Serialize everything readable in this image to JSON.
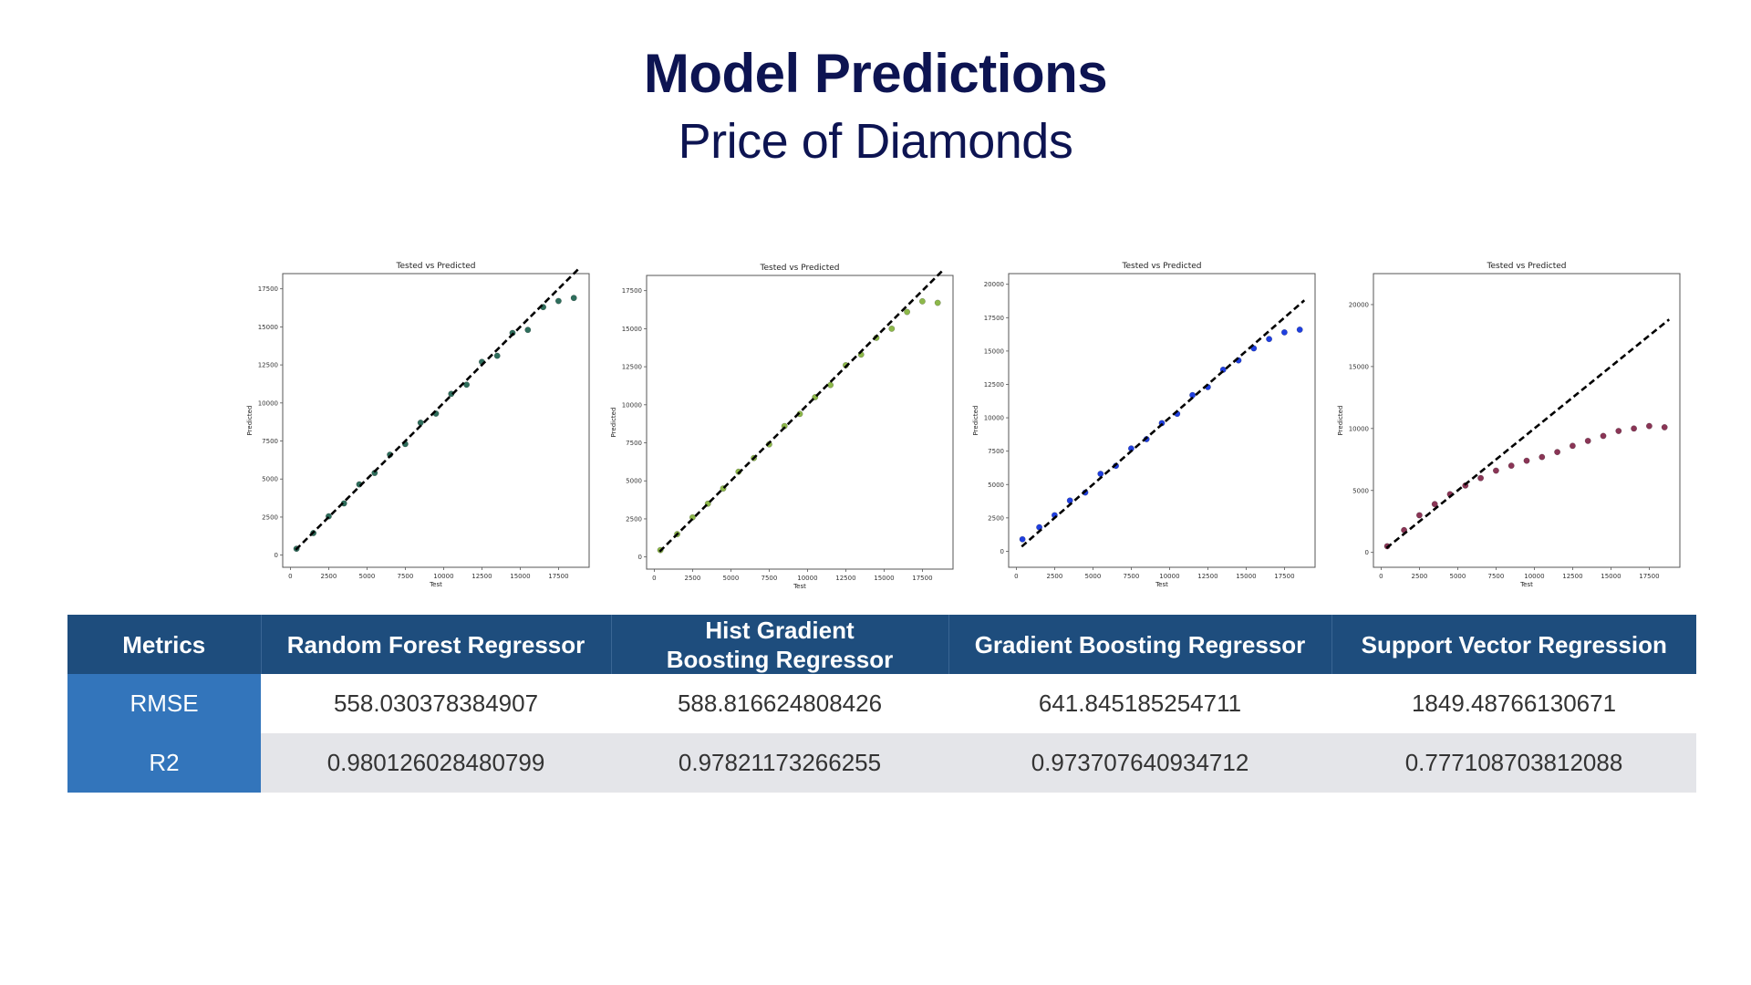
{
  "header": {
    "title": "Model Predictions",
    "subtitle": "Price of Diamonds"
  },
  "chart_data": [
    {
      "type": "scatter",
      "title": "Tested vs Predicted",
      "xlabel": "Test",
      "ylabel": "Predicted",
      "xlim": [
        -500,
        19500
      ],
      "ylim": [
        -800,
        18500
      ],
      "xticks": [
        "0",
        "2500",
        "5000",
        "7500",
        "10000",
        "12500",
        "15000",
        "17500"
      ],
      "yticks": [
        "0",
        "2500",
        "5000",
        "7500",
        "10000",
        "12500",
        "15000",
        "17500"
      ],
      "point_color": "#2e6e5c",
      "reference_line": {
        "x": [
          350,
          18800
        ],
        "y": [
          350,
          18800
        ]
      },
      "x": [
        400,
        1500,
        2500,
        3500,
        4500,
        5500,
        6500,
        7500,
        8500,
        9500,
        10500,
        11500,
        12500,
        13500,
        14500,
        15500,
        16500,
        17500,
        18500
      ],
      "y": [
        420,
        1450,
        2550,
        3400,
        4650,
        5400,
        6600,
        7300,
        8700,
        9300,
        10600,
        11200,
        12700,
        13100,
        14600,
        14800,
        16300,
        16700,
        16900
      ]
    },
    {
      "type": "scatter",
      "title": "Tested vs Predicted",
      "xlabel": "Test",
      "ylabel": "Predicted",
      "xlim": [
        -500,
        19500
      ],
      "ylim": [
        -800,
        18500
      ],
      "xticks": [
        "0",
        "2500",
        "5000",
        "7500",
        "10000",
        "12500",
        "15000",
        "17500"
      ],
      "yticks": [
        "0",
        "2500",
        "5000",
        "7500",
        "10000",
        "12500",
        "15000",
        "17500"
      ],
      "point_color": "#8db84a",
      "reference_line": {
        "x": [
          350,
          18800
        ],
        "y": [
          350,
          18800
        ]
      },
      "x": [
        400,
        1500,
        2500,
        3500,
        4500,
        5500,
        6500,
        7500,
        8500,
        9500,
        10500,
        11500,
        12500,
        13500,
        14500,
        15500,
        16500,
        17500,
        18500
      ],
      "y": [
        450,
        1500,
        2600,
        3500,
        4500,
        5600,
        6500,
        7400,
        8600,
        9400,
        10500,
        11300,
        12600,
        13300,
        14400,
        15000,
        16100,
        16800,
        16700
      ]
    },
    {
      "type": "scatter",
      "title": "Tested vs Predicted",
      "xlabel": "Test",
      "ylabel": "Predicted",
      "xlim": [
        -500,
        19500
      ],
      "ylim": [
        -1200,
        20800
      ],
      "xticks": [
        "0",
        "2500",
        "5000",
        "7500",
        "10000",
        "12500",
        "15000",
        "17500"
      ],
      "yticks": [
        "0",
        "2500",
        "5000",
        "7500",
        "10000",
        "12500",
        "15000",
        "17500",
        "20000"
      ],
      "point_color": "#1f3fe0",
      "reference_line": {
        "x": [
          350,
          18800
        ],
        "y": [
          350,
          18800
        ]
      },
      "x": [
        400,
        1500,
        2500,
        3500,
        4500,
        5500,
        6500,
        7500,
        8500,
        9500,
        10500,
        11500,
        12500,
        13500,
        14500,
        15500,
        16500,
        17500,
        18500
      ],
      "y": [
        900,
        1800,
        2700,
        3800,
        4400,
        5800,
        6400,
        7700,
        8400,
        9600,
        10300,
        11700,
        12300,
        13600,
        14300,
        15200,
        15900,
        16400,
        16600
      ]
    },
    {
      "type": "scatter",
      "title": "Tested vs Predicted",
      "xlabel": "Test",
      "ylabel": "Predicted",
      "xlim": [
        -500,
        19500
      ],
      "ylim": [
        -1200,
        22500
      ],
      "xticks": [
        "0",
        "2500",
        "5000",
        "7500",
        "10000",
        "12500",
        "15000",
        "17500"
      ],
      "yticks": [
        "0",
        "5000",
        "10000",
        "15000",
        "20000"
      ],
      "point_color": "#8a3556",
      "reference_line": {
        "x": [
          350,
          18800
        ],
        "y": [
          350,
          18800
        ]
      },
      "x": [
        400,
        1500,
        2500,
        3500,
        4500,
        5500,
        6500,
        7500,
        8500,
        9500,
        10500,
        11500,
        12500,
        13500,
        14500,
        15500,
        16500,
        17500,
        18500
      ],
      "y": [
        500,
        1800,
        3000,
        3900,
        4700,
        5400,
        6000,
        6600,
        7000,
        7400,
        7700,
        8100,
        8600,
        9000,
        9400,
        9800,
        10000,
        10200,
        10100
      ]
    }
  ],
  "table": {
    "headers": [
      "Metrics",
      "Random Forest Regressor",
      "Hist Gradient Boosting Regressor",
      "Gradient Boosting Regressor",
      "Support Vector Regression"
    ],
    "rows": [
      {
        "metric": "RMSE",
        "values": [
          "558.030378384907",
          "588.816624808426",
          "641.845185254711",
          "1849.48766130671"
        ]
      },
      {
        "metric": "R2",
        "values": [
          "0.980126028480799",
          "0.97821173266255",
          "0.973707640934712",
          "0.777108703812088"
        ]
      }
    ]
  },
  "colors": {
    "title": "#0d1452",
    "table_header": "#1e4d7d",
    "row_header": "#3375bb",
    "row_alt": "#e4e5e9"
  }
}
